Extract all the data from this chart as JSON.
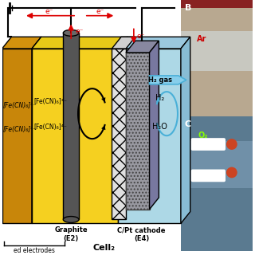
{
  "bg": "#ffffff",
  "left_cell_color": "#c8860a",
  "left_cell_side_color": "#b07a0a",
  "left_cell_top_color": "#d4920d",
  "yellow_color": "#f5d020",
  "yellow_top_color": "#e8ca18",
  "blue_color": "#add8e6",
  "blue_side_color": "#88bcd4",
  "blue_top_color": "#9bc8de",
  "graphite_color": "#555555",
  "graphite_light": "#686868",
  "cathode_color": "#a0a0a0",
  "membrane_color": "#c8c8c8",
  "panel_B_color": "#c0b8a8",
  "panel_C_color": "#6a8faa",
  "wire_color": "#000000",
  "electron_color": "#dd0000",
  "h2_arrow_color": "#4ab0d8",
  "circ_arrow_color": "#888888",
  "circ_arrow_blue": "#4ab0d8",
  "fe3_label": "[Fe(CN)₆]³⁻",
  "fe4_label": "[Fe(CN)₆]⁴⁻",
  "h2_label": "H₂",
  "h2o_label": "H₂O",
  "h2gas_label": "H₂ gas",
  "graphite_label": "Graphite\n(E2)",
  "cathode_label": "C/Pt cathode\n(E4)",
  "cell2_label": "Cell₂",
  "electrodes_label": "ed electrodes",
  "B_label": "B",
  "C_label": "C",
  "O2_label": "O₂",
  "Ar_label": "Ar"
}
